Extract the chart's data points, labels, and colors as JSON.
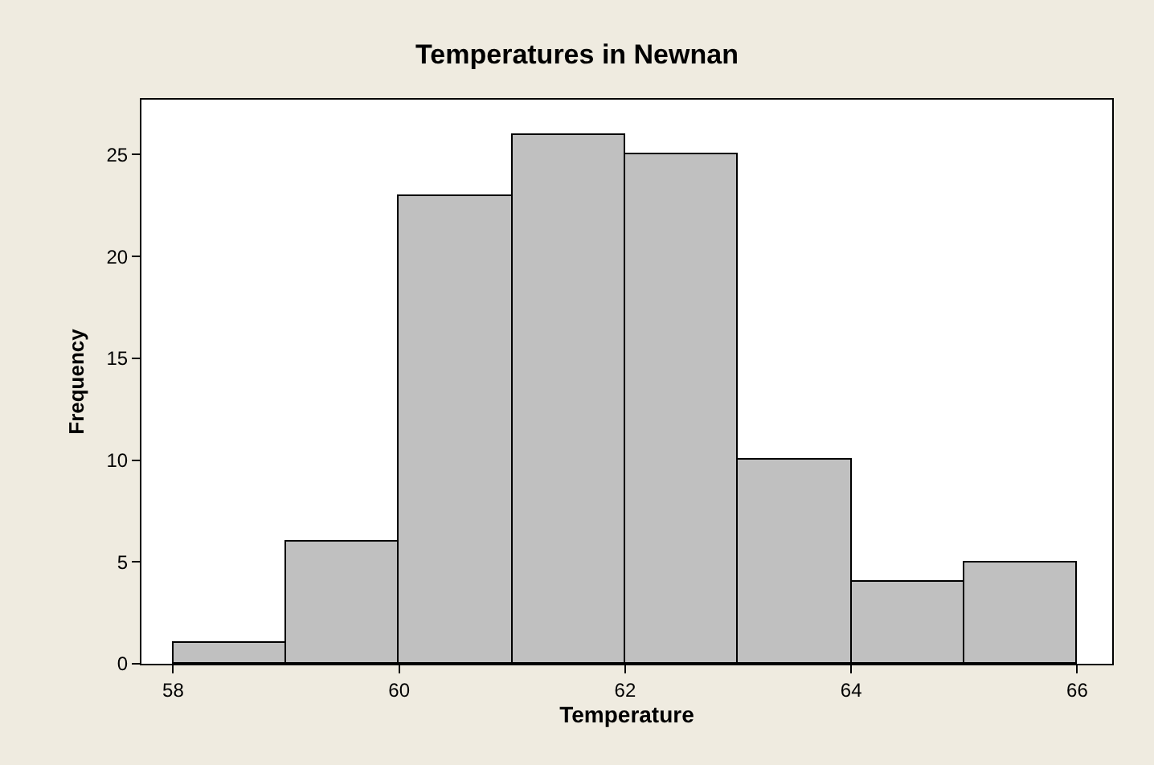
{
  "chart_data": {
    "type": "histogram",
    "title": "Temperatures in Newnan",
    "xlabel": "Temperature",
    "ylabel": "Frequency",
    "bins": [
      58,
      59,
      60,
      61,
      62,
      63,
      64,
      65,
      66
    ],
    "values": [
      1,
      6,
      23,
      26,
      25,
      10,
      4,
      5
    ],
    "color": "#c0c0c0",
    "xlim": [
      57.72,
      66.31
    ],
    "xticks": [
      58,
      60,
      62,
      64,
      66
    ],
    "ylim": [
      0,
      27.7
    ],
    "yticks": [
      0,
      5,
      10,
      15,
      20,
      25
    ]
  }
}
